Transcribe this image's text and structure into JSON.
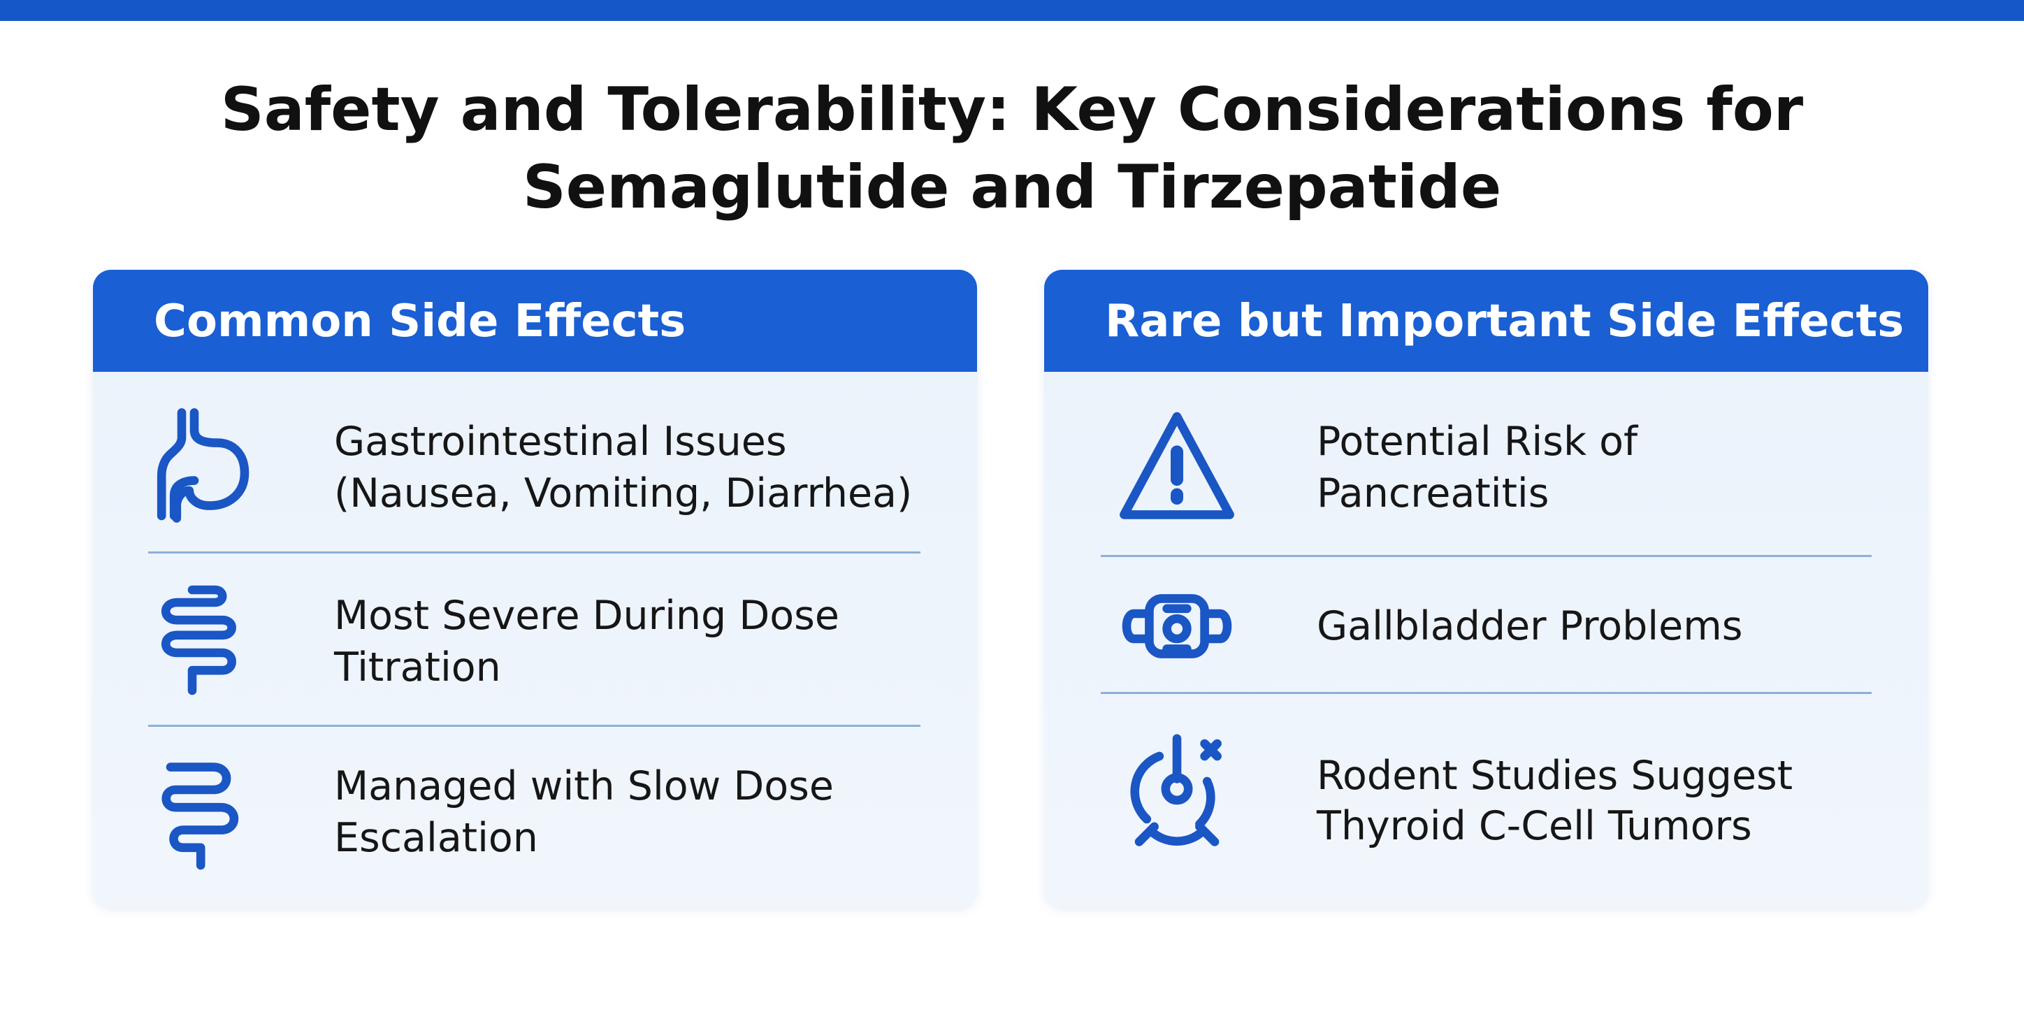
{
  "header": {
    "title": [
      "Safety and Tolerability: Key Considerations for",
      "Semaglutide and Tirzepatide"
    ]
  },
  "cards": [
    {
      "title": "Common Side Effects",
      "items": [
        {
          "lines": [
            "Gastrointestinal Issues",
            "(Nausea, Vomiting, Diarrhea)"
          ]
        },
        {
          "lines": [
            "Most Severe During Dose",
            "Titration"
          ]
        },
        {
          "lines": [
            "Managed with Slow Dose",
            "Escalation"
          ]
        }
      ]
    },
    {
      "title": "Rare but Important Side Effects",
      "items": [
        {
          "lines": [
            "Potential Risk of",
            "Pancreatitis"
          ]
        },
        {
          "lines": [
            "Gallbladder Problems"
          ]
        },
        {
          "lines": [
            "Rodent Studies Suggest",
            "Thyroid C-Cell Tumors"
          ]
        }
      ]
    }
  ]
}
